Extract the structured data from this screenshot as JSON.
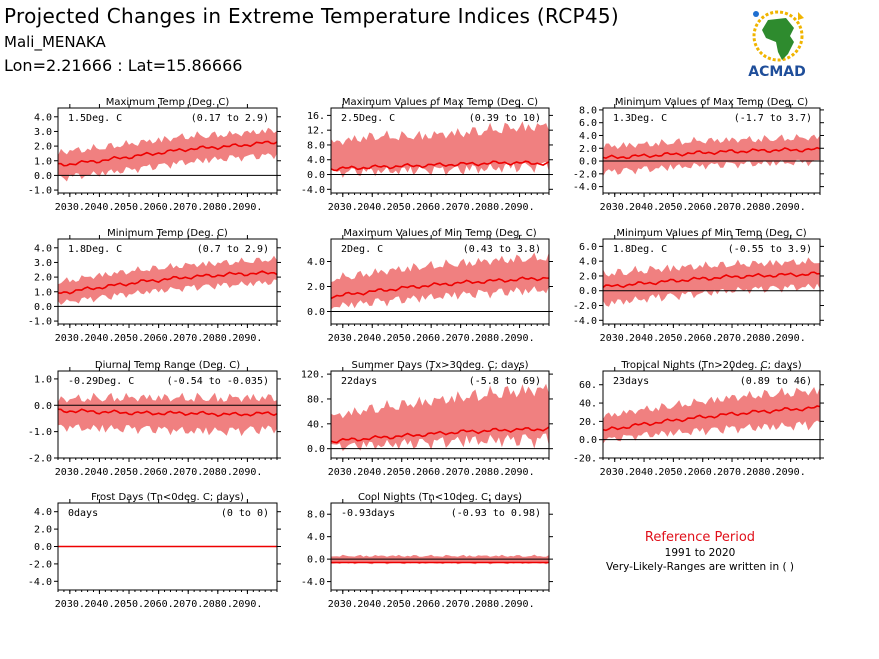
{
  "header": {
    "title": "Projected Changes in Extreme Temperature Indices (RCP45)",
    "location": "Mali_MENAKA",
    "coords": "Lon=2.21666 : Lat=15.86666"
  },
  "logo": {
    "text": "ACMAD"
  },
  "reference": {
    "title": "Reference Period",
    "years": "1991 to 2020",
    "note": "Very-Likely-Ranges are written in ( )"
  },
  "colors": {
    "band": "#f08080",
    "line": "#ee0000",
    "zero": "#000000",
    "title_red": "#e0101a"
  },
  "chart_data": [
    {
      "type": "area",
      "title": "Maximum Temp (Deg. C)",
      "value_label": "1.5Deg. C",
      "range_label": "(0.17 to 2.9)",
      "x_ticks": [
        "2030.",
        "2040.",
        "2050.",
        "2060.",
        "2070.",
        "2080.",
        "2090."
      ],
      "x_range": [
        2026,
        2100
      ],
      "y_ticks": [
        -1.0,
        0.0,
        1.0,
        2.0,
        3.0,
        4.0
      ],
      "ylim": [
        -1.2,
        4.6
      ],
      "series": [
        {
          "values": [
            [
              2026,
              0.7
            ],
            [
              2040,
              1.0
            ],
            [
              2055,
              1.4
            ],
            [
              2070,
              1.8
            ],
            [
              2085,
              2.0
            ],
            [
              2100,
              2.3
            ]
          ]
        }
      ],
      "band": {
        "lower": [
          [
            2026,
            -0.5
          ],
          [
            2040,
            -0.2
          ],
          [
            2055,
            0.2
          ],
          [
            2070,
            0.6
          ],
          [
            2085,
            0.9
          ],
          [
            2100,
            1.1
          ]
        ],
        "upper": [
          [
            2026,
            1.9
          ],
          [
            2040,
            2.2
          ],
          [
            2055,
            2.6
          ],
          [
            2070,
            3.0
          ],
          [
            2085,
            3.1
          ],
          [
            2100,
            3.4
          ]
        ]
      }
    },
    {
      "type": "area",
      "title": "Maximum Values of Max Temp (Deg. C)",
      "value_label": "2.5Deg. C",
      "range_label": "(0.39 to 10)",
      "x_ticks": [
        "2030.",
        "2040.",
        "2050.",
        "2060.",
        "2070.",
        "2080.",
        "2090."
      ],
      "x_range": [
        2026,
        2100
      ],
      "y_ticks": [
        -4.0,
        0.0,
        4.0,
        8.0,
        12.0,
        16.0
      ],
      "ylim": [
        -5,
        18
      ],
      "series": [
        {
          "values": [
            [
              2026,
              1.5
            ],
            [
              2040,
              2.0
            ],
            [
              2055,
              2.4
            ],
            [
              2070,
              2.8
            ],
            [
              2085,
              3.2
            ],
            [
              2100,
              3.0
            ]
          ]
        }
      ],
      "band": {
        "lower": [
          [
            2026,
            -1.0
          ],
          [
            2040,
            -0.8
          ],
          [
            2055,
            -0.5
          ],
          [
            2070,
            -0.5
          ],
          [
            2085,
            0.0
          ],
          [
            2100,
            0.5
          ]
        ],
        "upper": [
          [
            2026,
            10.0
          ],
          [
            2040,
            12.0
          ],
          [
            2055,
            12.0
          ],
          [
            2070,
            13.0
          ],
          [
            2085,
            14.5
          ],
          [
            2100,
            15.0
          ]
        ]
      }
    },
    {
      "type": "area",
      "title": "Minimum Values of Max Temp (Deg. C)",
      "value_label": "1.3Deg. C",
      "range_label": "(-1.7 to 3.7)",
      "x_ticks": [
        "2030.",
        "2040.",
        "2050.",
        "2060.",
        "2070.",
        "2080.",
        "2090."
      ],
      "x_range": [
        2026,
        2100
      ],
      "y_ticks": [
        -4.0,
        -2.0,
        0.0,
        2.0,
        4.0,
        6.0,
        8.0
      ],
      "ylim": [
        -5,
        8.3
      ],
      "series": [
        {
          "values": [
            [
              2026,
              0.5
            ],
            [
              2040,
              0.8
            ],
            [
              2055,
              1.2
            ],
            [
              2070,
              1.5
            ],
            [
              2085,
              1.7
            ],
            [
              2100,
              1.8
            ]
          ]
        }
      ],
      "band": {
        "lower": [
          [
            2026,
            -2.5
          ],
          [
            2040,
            -2.0
          ],
          [
            2055,
            -1.5
          ],
          [
            2070,
            -1.2
          ],
          [
            2085,
            -1.0
          ],
          [
            2100,
            -0.8
          ]
        ],
        "upper": [
          [
            2026,
            3.0
          ],
          [
            2040,
            3.3
          ],
          [
            2055,
            3.8
          ],
          [
            2070,
            4.0
          ],
          [
            2085,
            4.2
          ],
          [
            2100,
            4.4
          ]
        ]
      }
    },
    {
      "type": "area",
      "title": "Minimum Temp (Deg. C)",
      "value_label": "1.8Deg. C",
      "range_label": "(0.7 to 2.9)",
      "x_ticks": [
        "2030.",
        "2040.",
        "2050.",
        "2060.",
        "2070.",
        "2080.",
        "2090."
      ],
      "x_range": [
        2026,
        2100
      ],
      "y_ticks": [
        -1.0,
        0.0,
        1.0,
        2.0,
        3.0,
        4.0
      ],
      "ylim": [
        -1.2,
        4.6
      ],
      "series": [
        {
          "values": [
            [
              2026,
              0.9
            ],
            [
              2040,
              1.3
            ],
            [
              2055,
              1.7
            ],
            [
              2070,
              2.0
            ],
            [
              2085,
              2.2
            ],
            [
              2100,
              2.3
            ]
          ]
        }
      ],
      "band": {
        "lower": [
          [
            2026,
            0.0
          ],
          [
            2040,
            0.3
          ],
          [
            2055,
            0.7
          ],
          [
            2070,
            1.0
          ],
          [
            2085,
            1.2
          ],
          [
            2100,
            1.4
          ]
        ],
        "upper": [
          [
            2026,
            1.9
          ],
          [
            2040,
            2.4
          ],
          [
            2055,
            2.8
          ],
          [
            2070,
            3.1
          ],
          [
            2085,
            3.3
          ],
          [
            2100,
            3.5
          ]
        ]
      }
    },
    {
      "type": "area",
      "title": "Maximum Values of Min Temp (Deg. C)",
      "value_label": "2Deg. C",
      "range_label": "(0.43 to 3.8)",
      "x_ticks": [
        "2030.",
        "2040.",
        "2050.",
        "2060.",
        "2070.",
        "2080.",
        "2090."
      ],
      "x_range": [
        2026,
        2100
      ],
      "y_ticks": [
        0.0,
        2.0,
        4.0
      ],
      "ylim": [
        -1.0,
        5.8
      ],
      "series": [
        {
          "values": [
            [
              2026,
              1.2
            ],
            [
              2040,
              1.6
            ],
            [
              2055,
              2.0
            ],
            [
              2070,
              2.3
            ],
            [
              2085,
              2.5
            ],
            [
              2100,
              2.7
            ]
          ]
        }
      ],
      "band": {
        "lower": [
          [
            2026,
            0.0
          ],
          [
            2040,
            0.3
          ],
          [
            2055,
            0.6
          ],
          [
            2070,
            0.9
          ],
          [
            2085,
            1.1
          ],
          [
            2100,
            1.3
          ]
        ],
        "upper": [
          [
            2026,
            3.0
          ],
          [
            2040,
            3.5
          ],
          [
            2055,
            4.0
          ],
          [
            2070,
            4.3
          ],
          [
            2085,
            4.6
          ],
          [
            2100,
            4.8
          ]
        ]
      }
    },
    {
      "type": "area",
      "title": "Minimum Values of Min Temp (Deg. C)",
      "value_label": "1.8Deg. C",
      "range_label": "(-0.55 to 3.9)",
      "x_ticks": [
        "2030.",
        "2040.",
        "2050.",
        "2060.",
        "2070.",
        "2080.",
        "2090."
      ],
      "x_range": [
        2026,
        2100
      ],
      "y_ticks": [
        -4.0,
        -2.0,
        0.0,
        2.0,
        4.0,
        6.0
      ],
      "ylim": [
        -4.5,
        7.0
      ],
      "series": [
        {
          "values": [
            [
              2026,
              0.5
            ],
            [
              2040,
              1.0
            ],
            [
              2055,
              1.5
            ],
            [
              2070,
              1.9
            ],
            [
              2085,
              2.1
            ],
            [
              2100,
              2.3
            ]
          ]
        }
      ],
      "band": {
        "lower": [
          [
            2026,
            -2.5
          ],
          [
            2040,
            -1.8
          ],
          [
            2055,
            -1.2
          ],
          [
            2070,
            -0.6
          ],
          [
            2085,
            -0.3
          ],
          [
            2100,
            0.0
          ]
        ],
        "upper": [
          [
            2026,
            3.0
          ],
          [
            2040,
            3.5
          ],
          [
            2055,
            3.9
          ],
          [
            2070,
            4.2
          ],
          [
            2085,
            4.4
          ],
          [
            2100,
            4.6
          ]
        ]
      }
    },
    {
      "type": "area",
      "title": "Diurnal Temp Range (Deg. C)",
      "value_label": "-0.29Deg. C",
      "range_label": "(-0.54 to -0.035)",
      "x_ticks": [
        "2030.",
        "2040.",
        "2050.",
        "2060.",
        "2070.",
        "2080.",
        "2090."
      ],
      "x_range": [
        2026,
        2100
      ],
      "y_ticks": [
        -2.0,
        -1.0,
        0.0,
        1.0
      ],
      "ylim": [
        -2.0,
        1.3
      ],
      "series": [
        {
          "values": [
            [
              2026,
              -0.2
            ],
            [
              2040,
              -0.25
            ],
            [
              2055,
              -0.3
            ],
            [
              2070,
              -0.3
            ],
            [
              2085,
              -0.35
            ],
            [
              2100,
              -0.3
            ]
          ]
        }
      ],
      "band": {
        "lower": [
          [
            2026,
            -1.0
          ],
          [
            2040,
            -1.1
          ],
          [
            2055,
            -1.1
          ],
          [
            2070,
            -1.2
          ],
          [
            2085,
            -1.2
          ],
          [
            2100,
            -1.1
          ]
        ],
        "upper": [
          [
            2026,
            0.4
          ],
          [
            2040,
            0.5
          ],
          [
            2055,
            0.5
          ],
          [
            2070,
            0.5
          ],
          [
            2085,
            0.5
          ],
          [
            2100,
            0.5
          ]
        ]
      }
    },
    {
      "type": "area",
      "title": "Summer Days (Tx>30deg. C; days)",
      "value_label": "22days",
      "range_label": "(-5.8 to 69)",
      "x_ticks": [
        "2030.",
        "2040.",
        "2050.",
        "2060.",
        "2070.",
        "2080.",
        "2090."
      ],
      "x_range": [
        2026,
        2100
      ],
      "y_ticks": [
        0,
        40,
        80,
        120
      ],
      "ylim": [
        -15,
        125
      ],
      "series": [
        {
          "values": [
            [
              2026,
              12
            ],
            [
              2040,
              17
            ],
            [
              2055,
              22
            ],
            [
              2070,
              27
            ],
            [
              2085,
              30
            ],
            [
              2100,
              32
            ]
          ]
        }
      ],
      "band": {
        "lower": [
          [
            2026,
            -5
          ],
          [
            2040,
            -5
          ],
          [
            2055,
            -3
          ],
          [
            2070,
            0
          ],
          [
            2085,
            0
          ],
          [
            2100,
            0
          ]
        ],
        "upper": [
          [
            2026,
            60
          ],
          [
            2040,
            75
          ],
          [
            2055,
            85
          ],
          [
            2070,
            95
          ],
          [
            2085,
            105
          ],
          [
            2100,
            110
          ]
        ]
      }
    },
    {
      "type": "area",
      "title": "Tropical Nights (Tn>20deg. C; days)",
      "value_label": "23days",
      "range_label": "(0.89 to 46)",
      "x_ticks": [
        "2030.",
        "2040.",
        "2050.",
        "2060.",
        "2070.",
        "2080.",
        "2090."
      ],
      "x_range": [
        2026,
        2100
      ],
      "y_ticks": [
        -20,
        0,
        20,
        40,
        60
      ],
      "ylim": [
        -20,
        75
      ],
      "series": [
        {
          "values": [
            [
              2026,
              10
            ],
            [
              2040,
              17
            ],
            [
              2055,
              23
            ],
            [
              2070,
              28
            ],
            [
              2085,
              32
            ],
            [
              2100,
              35
            ]
          ]
        }
      ],
      "band": {
        "lower": [
          [
            2026,
            -5
          ],
          [
            2040,
            0
          ],
          [
            2055,
            3
          ],
          [
            2070,
            6
          ],
          [
            2085,
            8
          ],
          [
            2100,
            10
          ]
        ],
        "upper": [
          [
            2026,
            30
          ],
          [
            2040,
            38
          ],
          [
            2055,
            45
          ],
          [
            2070,
            52
          ],
          [
            2085,
            57
          ],
          [
            2100,
            60
          ]
        ]
      }
    },
    {
      "type": "area",
      "title": "Frost Days (Tn<0deg. C; days)",
      "value_label": "0days",
      "range_label": "(0 to 0)",
      "x_ticks": [
        "2030.",
        "2040.",
        "2050.",
        "2060.",
        "2070.",
        "2080.",
        "2090."
      ],
      "x_range": [
        2026,
        2100
      ],
      "y_ticks": [
        -4.0,
        -2.0,
        0.0,
        2.0,
        4.0
      ],
      "ylim": [
        -5,
        5
      ],
      "series": [
        {
          "values": [
            [
              2026,
              0
            ],
            [
              2100,
              0
            ]
          ]
        }
      ],
      "band": {
        "lower": [
          [
            2026,
            0
          ],
          [
            2100,
            0
          ]
        ],
        "upper": [
          [
            2026,
            0
          ],
          [
            2100,
            0
          ]
        ]
      }
    },
    {
      "type": "area",
      "title": "Cool Nights (Tn<10deg. C; days)",
      "value_label": "-0.93days",
      "range_label": "(-0.93 to 0.98)",
      "x_ticks": [
        "2030.",
        "2040.",
        "2050.",
        "2060.",
        "2070.",
        "2080.",
        "2090."
      ],
      "x_range": [
        2026,
        2100
      ],
      "y_ticks": [
        -4.0,
        0.0,
        4.0,
        8.0
      ],
      "ylim": [
        -5.5,
        10
      ],
      "series": [
        {
          "values": [
            [
              2026,
              -0.6
            ],
            [
              2100,
              -0.6
            ]
          ]
        }
      ],
      "band": {
        "lower": [
          [
            2026,
            -0.95
          ],
          [
            2100,
            -0.95
          ]
        ],
        "upper": [
          [
            2026,
            0.8
          ],
          [
            2100,
            0.8
          ]
        ]
      }
    }
  ]
}
